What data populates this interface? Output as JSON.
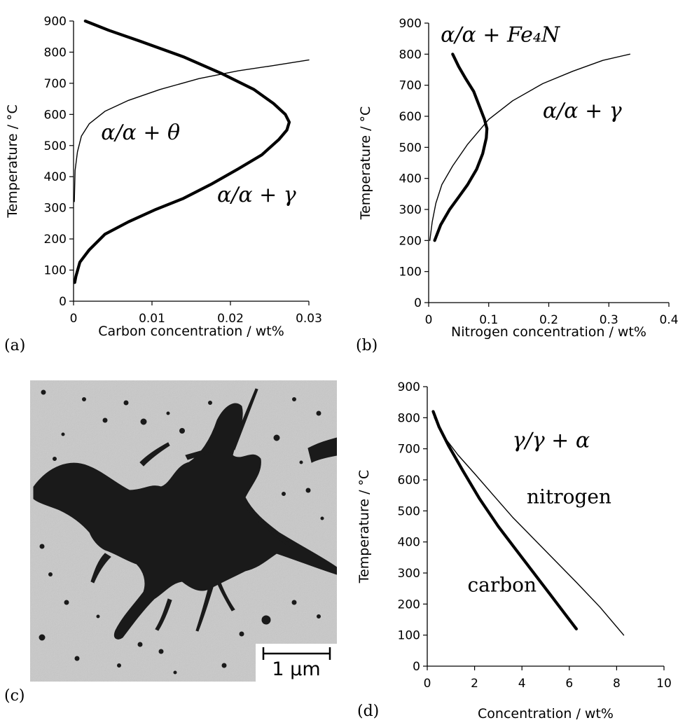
{
  "panel_labels": [
    "(a)",
    "(b)",
    "(c)",
    "(d)"
  ],
  "micrograph": {
    "scale_bar_label": "1 μm"
  },
  "chart_data": [
    {
      "panel": "(a)",
      "type": "line",
      "xlabel": "Carbon concentration / wt%",
      "ylabel": "Temperature / °C",
      "xlim": [
        0,
        0.03
      ],
      "ylim": [
        0,
        900
      ],
      "xticks": [
        0,
        0.01,
        0.02,
        0.03
      ],
      "xtick_labels": [
        "0",
        "0.01",
        "0.02",
        "0.03"
      ],
      "yticks": [
        0,
        100,
        200,
        300,
        400,
        500,
        600,
        700,
        800,
        900
      ],
      "ytick_labels": [
        "0",
        "100",
        "200",
        "300",
        "400",
        "500",
        "600",
        "700",
        "800",
        "900"
      ],
      "annotations": [
        {
          "text": "α/α + θ",
          "x": 0.0035,
          "y": 520
        },
        {
          "text": "α/α + γ",
          "x": 0.0183,
          "y": 320
        }
      ],
      "series": [
        {
          "style": "thick",
          "x": [
            0.00015,
            0.0003,
            0.0008,
            0.002,
            0.004,
            0.007,
            0.0105,
            0.014,
            0.0175,
            0.021,
            0.024,
            0.0262,
            0.0272,
            0.0275,
            0.027,
            0.0255,
            0.023,
            0.019,
            0.014,
            0.0085,
            0.0045,
            0.0015
          ],
          "y": [
            60,
            80,
            125,
            165,
            215,
            255,
            295,
            330,
            375,
            425,
            470,
            520,
            550,
            575,
            600,
            635,
            680,
            730,
            785,
            835,
            870,
            900
          ]
        },
        {
          "style": "thin",
          "x": [
            0.0001,
            0.0002,
            0.0005,
            0.001,
            0.002,
            0.004,
            0.007,
            0.011,
            0.016,
            0.021,
            0.025,
            0.03
          ],
          "y": [
            320,
            420,
            480,
            530,
            570,
            610,
            645,
            680,
            715,
            740,
            755,
            775
          ]
        }
      ]
    },
    {
      "panel": "(b)",
      "type": "line",
      "xlabel": "Nitrogen concentration / wt%",
      "ylabel": "Temperature / °C",
      "xlim": [
        0,
        0.4
      ],
      "ylim": [
        0,
        900
      ],
      "xticks": [
        0,
        0.1,
        0.2,
        0.3,
        0.4
      ],
      "xtick_labels": [
        "0",
        "0.1",
        "0.2",
        "0.3",
        "0.4"
      ],
      "yticks": [
        0,
        100,
        200,
        300,
        400,
        500,
        600,
        700,
        800,
        900
      ],
      "ytick_labels": [
        "0",
        "100",
        "200",
        "300",
        "400",
        "500",
        "600",
        "700",
        "800",
        "900"
      ],
      "annotations": [
        {
          "text": "α/α + Fe₄N",
          "x": 0.02,
          "y": 840
        },
        {
          "text": "α/α + γ",
          "x": 0.19,
          "y": 595
        }
      ],
      "series": [
        {
          "style": "thick",
          "x": [
            0.01,
            0.02,
            0.035,
            0.05,
            0.065,
            0.08,
            0.09,
            0.096,
            0.097,
            0.093,
            0.085,
            0.075,
            0.062,
            0.05,
            0.04
          ],
          "y": [
            200,
            250,
            300,
            340,
            380,
            430,
            480,
            530,
            560,
            590,
            630,
            680,
            720,
            760,
            800
          ]
        },
        {
          "style": "thin",
          "x": [
            0.002,
            0.006,
            0.012,
            0.022,
            0.04,
            0.065,
            0.1,
            0.14,
            0.19,
            0.24,
            0.29,
            0.335
          ],
          "y": [
            200,
            260,
            320,
            380,
            440,
            510,
            590,
            650,
            705,
            745,
            780,
            800
          ]
        }
      ]
    },
    {
      "panel": "(d)",
      "type": "line",
      "xlabel": "Concentration / wt%",
      "ylabel": "Temperature / °C",
      "xlim": [
        0,
        10
      ],
      "ylim": [
        0,
        900
      ],
      "xticks": [
        0,
        2,
        4,
        6,
        8,
        10
      ],
      "xtick_labels": [
        "0",
        "2",
        "4",
        "6",
        "8",
        "10"
      ],
      "yticks": [
        0,
        100,
        200,
        300,
        400,
        500,
        600,
        700,
        800,
        900
      ],
      "ytick_labels": [
        "0",
        "100",
        "200",
        "300",
        "400",
        "500",
        "600",
        "700",
        "800",
        "900"
      ],
      "annotations": [
        {
          "text": "γ/γ + α",
          "x": 3.6,
          "y": 705
        },
        {
          "text": "nitrogen",
          "x": 4.2,
          "y": 525,
          "style": "roman"
        },
        {
          "text": "carbon",
          "x": 1.7,
          "y": 240,
          "style": "roman"
        }
      ],
      "series": [
        {
          "name": "carbon",
          "style": "thick",
          "x": [
            0.25,
            0.5,
            0.9,
            1.5,
            2.2,
            3.0,
            3.8,
            4.5,
            5.2,
            5.8,
            6.3
          ],
          "y": [
            820,
            770,
            710,
            630,
            540,
            450,
            370,
            300,
            230,
            170,
            120
          ]
        },
        {
          "name": "nitrogen",
          "style": "thin",
          "x": [
            0.3,
            0.7,
            1.3,
            2.0,
            2.8,
            3.6,
            4.5,
            5.4,
            6.3,
            7.3,
            8.3
          ],
          "y": [
            800,
            740,
            680,
            620,
            550,
            480,
            410,
            340,
            270,
            190,
            100
          ]
        }
      ]
    }
  ]
}
